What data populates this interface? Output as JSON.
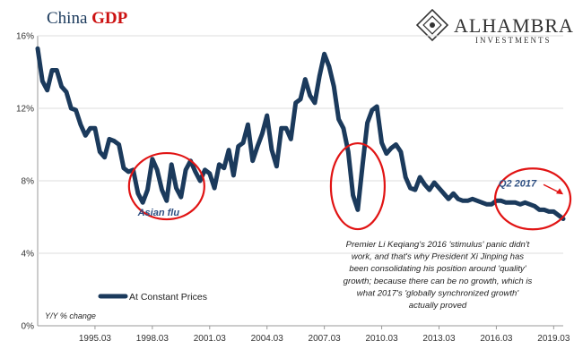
{
  "title": {
    "part1": "China ",
    "part2": "GDP"
  },
  "brand": {
    "name": "ALHAMBRA",
    "sub": "INVESTMENTS",
    "logo_icon": "alhambra-diamond-logo"
  },
  "colors": {
    "series": "#1b3a5c",
    "annotation": "#e11414",
    "title_accent": "#cc1111"
  },
  "chart_data": {
    "type": "line",
    "ylabel": "Y/Y % change",
    "ylim": [
      0,
      16
    ],
    "yticks": [
      "0%",
      "4%",
      "8%",
      "12%",
      "16%"
    ],
    "xticks": [
      "1995.03",
      "1998.03",
      "2001.03",
      "2004.03",
      "2007.03",
      "2010.03",
      "2013.03",
      "2016.03",
      "2019.03"
    ],
    "xlim": [
      "1992.03",
      "2019.09"
    ],
    "legend": {
      "position": "bottom-left"
    },
    "series": [
      {
        "name": "At Constant Prices",
        "x": [
          "1992.03",
          "1992.06",
          "1992.09",
          "1992.12",
          "1993.03",
          "1993.06",
          "1993.09",
          "1993.12",
          "1994.03",
          "1994.06",
          "1994.09",
          "1994.12",
          "1995.03",
          "1995.06",
          "1995.09",
          "1995.12",
          "1996.03",
          "1996.06",
          "1996.09",
          "1996.12",
          "1997.03",
          "1997.06",
          "1997.09",
          "1997.12",
          "1998.03",
          "1998.06",
          "1998.09",
          "1998.12",
          "1999.03",
          "1999.06",
          "1999.09",
          "1999.12",
          "2000.03",
          "2000.06",
          "2000.09",
          "2000.12",
          "2001.03",
          "2001.06",
          "2001.09",
          "2001.12",
          "2002.03",
          "2002.06",
          "2002.09",
          "2002.12",
          "2003.03",
          "2003.06",
          "2003.09",
          "2003.12",
          "2004.03",
          "2004.06",
          "2004.09",
          "2004.12",
          "2005.03",
          "2005.06",
          "2005.09",
          "2005.12",
          "2006.03",
          "2006.06",
          "2006.09",
          "2006.12",
          "2007.03",
          "2007.06",
          "2007.09",
          "2007.12",
          "2008.03",
          "2008.06",
          "2008.09",
          "2008.12",
          "2009.03",
          "2009.06",
          "2009.09",
          "2009.12",
          "2010.03",
          "2010.06",
          "2010.09",
          "2010.12",
          "2011.03",
          "2011.06",
          "2011.09",
          "2011.12",
          "2012.03",
          "2012.06",
          "2012.09",
          "2012.12",
          "2013.03",
          "2013.06",
          "2013.09",
          "2013.12",
          "2014.03",
          "2014.06",
          "2014.09",
          "2014.12",
          "2015.03",
          "2015.06",
          "2015.09",
          "2015.12",
          "2016.03",
          "2016.06",
          "2016.09",
          "2016.12",
          "2017.03",
          "2017.06",
          "2017.09",
          "2017.12",
          "2018.03",
          "2018.06",
          "2018.09",
          "2018.12",
          "2019.03",
          "2019.06",
          "2019.09"
        ],
        "values": [
          15.3,
          13.5,
          13.0,
          14.1,
          14.1,
          13.2,
          12.9,
          12.0,
          11.9,
          11.1,
          10.5,
          10.9,
          10.9,
          9.6,
          9.3,
          10.3,
          10.2,
          10.0,
          8.7,
          8.5,
          8.6,
          7.3,
          6.8,
          7.5,
          9.2,
          8.6,
          7.5,
          6.9,
          8.9,
          7.6,
          7.1,
          8.6,
          9.1,
          8.5,
          8.0,
          8.6,
          8.4,
          7.6,
          8.9,
          8.7,
          9.7,
          8.3,
          9.9,
          10.1,
          11.1,
          9.1,
          9.9,
          10.6,
          11.6,
          9.7,
          8.8,
          10.9,
          10.9,
          10.3,
          12.3,
          12.5,
          13.6,
          12.7,
          12.3,
          13.8,
          15.0,
          14.3,
          13.2,
          11.4,
          10.9,
          9.6,
          7.2,
          6.4,
          8.9,
          11.2,
          11.9,
          12.1,
          10.1,
          9.5,
          9.8,
          10.0,
          9.6,
          8.2,
          7.6,
          7.5,
          8.2,
          7.8,
          7.5,
          7.9,
          7.6,
          7.3,
          7.0,
          7.3,
          7.0,
          6.9,
          6.9,
          7.0,
          6.9,
          6.8,
          6.7,
          6.7,
          6.9,
          6.9,
          6.8,
          6.8,
          6.8,
          6.7,
          6.8,
          6.7,
          6.6,
          6.4,
          6.4,
          6.3,
          6.3,
          6.1,
          5.9
        ]
      }
    ],
    "annotations": [
      {
        "text": "Asian flu",
        "circle_center_x": "1998.12",
        "circle_center_y": 7.7
      },
      {
        "text": "",
        "circle_center_x": "2008.12",
        "circle_center_y": 7.7
      },
      {
        "text": "Q2 2017",
        "circle_center_x": "2017.06",
        "circle_center_y": 7.0
      }
    ],
    "note_lines": [
      "Premier Li Keqiang's 2016 'stimulus' panic didn't",
      "work, and that's why President Xi Jinping has",
      "been consolidating his position around  'quality'",
      "growth; because there can be no growth, which is",
      "what 2017's 'globally synchronized growth'",
      "actually proved"
    ]
  }
}
